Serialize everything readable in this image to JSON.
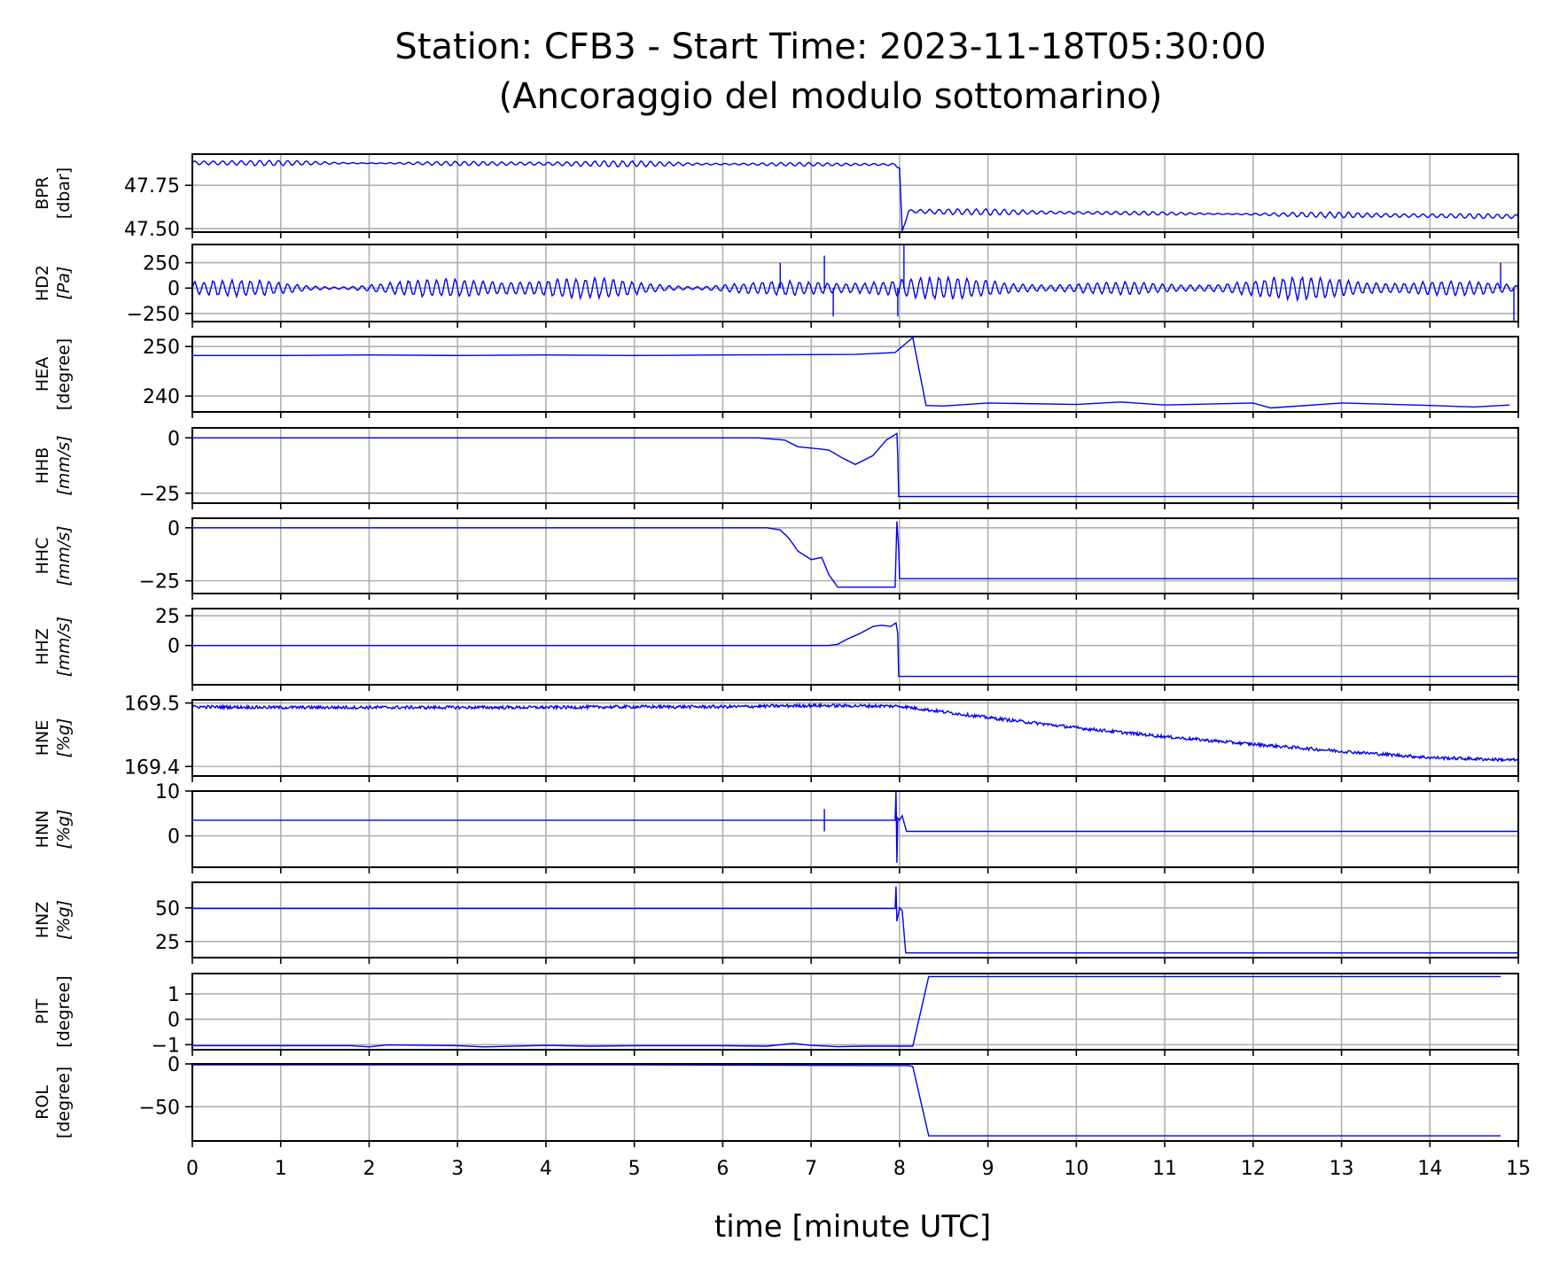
{
  "title_line1": "Station: CFB3 - Start Time: 2023-11-18T05:30:00",
  "title_line2": "(Ancoraggio del modulo sottomarino)",
  "xlabel": "time [minute UTC]",
  "colors": {
    "trace": "#0000ee",
    "grid": "#b0b0b0",
    "axes": "#000000"
  },
  "chart_data": {
    "type": "line",
    "shared_x": {
      "label": "time [minute UTC]",
      "range": [
        0,
        15
      ],
      "ticks": [
        0,
        1,
        2,
        3,
        4,
        5,
        6,
        7,
        8,
        9,
        10,
        11,
        12,
        13,
        14,
        15
      ],
      "tick_labels": [
        "0",
        "1",
        "2",
        "3",
        "4",
        "5",
        "6",
        "7",
        "8",
        "9",
        "10",
        "11",
        "12",
        "13",
        "14",
        "15"
      ]
    },
    "grid": true,
    "panels": [
      {
        "channel": "BPR",
        "unit": "[dbar]",
        "unit_italic": false,
        "ylim": [
          47.48,
          47.93
        ],
        "yticks": [
          47.5,
          47.75
        ],
        "ytick_labels": [
          "47.50",
          "47.75"
        ],
        "series": [
          {
            "x": [
              0,
              7.95,
              8.0,
              8.03,
              8.1,
              15
            ],
            "y": [
              47.88,
              47.87,
              47.85,
              47.48,
              47.6,
              47.57
            ]
          }
        ],
        "oscillation_amplitude": 0.02
      },
      {
        "channel": "HD2",
        "unit": "[Pa]",
        "unit_italic": true,
        "ylim": [
          -330,
          430
        ],
        "yticks": [
          -250,
          0,
          250
        ],
        "ytick_labels": [
          "−250",
          "0",
          "250"
        ],
        "series": [
          {
            "x": [
              0,
              15
            ],
            "y": [
              0,
              0
            ]
          }
        ],
        "oscillation_amplitude": 120,
        "spikes": [
          {
            "x": 6.65,
            "y": 250
          },
          {
            "x": 7.15,
            "y": 320
          },
          {
            "x": 7.25,
            "y": -280
          },
          {
            "x": 7.98,
            "y": -280
          },
          {
            "x": 8.05,
            "y": 430
          },
          {
            "x": 14.8,
            "y": 250
          },
          {
            "x": 14.95,
            "y": -320
          }
        ]
      },
      {
        "channel": "HEA",
        "unit": "[degree]",
        "unit_italic": false,
        "ylim": [
          236.8,
          252.0
        ],
        "yticks": [
          240,
          250
        ],
        "ytick_labels": [
          "240",
          "250"
        ],
        "series": [
          {
            "x": [
              0,
              1,
              2,
              3,
              4,
              5,
              6,
              7.5,
              7.95,
              8.15,
              8.3,
              8.5,
              9,
              10,
              10.5,
              11,
              12,
              12.2,
              13,
              14,
              14.5,
              14.9
            ],
            "y": [
              248.2,
              248.2,
              248.3,
              248.2,
              248.3,
              248.2,
              248.3,
              248.4,
              248.8,
              251.8,
              238.1,
              238.0,
              238.6,
              238.3,
              238.8,
              238.2,
              238.6,
              237.6,
              238.6,
              238.1,
              237.8,
              238.2
            ]
          }
        ]
      },
      {
        "channel": "HHB",
        "unit": "[mm/s]",
        "unit_italic": true,
        "ylim": [
          -29.5,
          4.5
        ],
        "yticks": [
          -25,
          0
        ],
        "ytick_labels": [
          "−25",
          "0"
        ],
        "series": [
          {
            "x": [
              0,
              6.4,
              6.7,
              6.85,
              7.1,
              7.2,
              7.35,
              7.5,
              7.7,
              7.85,
              7.97,
              7.98,
              7.99,
              8.0,
              15
            ],
            "y": [
              0,
              0,
              -1,
              -4,
              -5,
              -5.5,
              -9,
              -12,
              -8,
              -1,
              2,
              -8,
              -26.5,
              -26.5,
              -26.5
            ]
          }
        ]
      },
      {
        "channel": "HHC",
        "unit": "[mm/s]",
        "unit_italic": true,
        "ylim": [
          -31,
          4.5
        ],
        "yticks": [
          -25,
          0
        ],
        "ytick_labels": [
          "−25",
          "0"
        ],
        "series": [
          {
            "x": [
              0,
              6.5,
              6.65,
              6.75,
              6.85,
              7.0,
              7.12,
              7.2,
              7.3,
              7.6,
              7.95,
              7.97,
              7.99,
              8.0,
              15
            ],
            "y": [
              0,
              0,
              -1,
              -5,
              -11,
              -15,
              -14,
              -22,
              -28,
              -28,
              -28,
              3,
              -10,
              -24,
              -24
            ]
          }
        ]
      },
      {
        "channel": "HHZ",
        "unit": "[mm/s]",
        "unit_italic": true,
        "ylim": [
          -33,
          31
        ],
        "yticks": [
          0,
          25
        ],
        "ytick_labels": [
          "0",
          "25"
        ],
        "series": [
          {
            "x": [
              0,
              7.1,
              7.15,
              7.2,
              7.3,
              7.4,
              7.55,
              7.7,
              7.8,
              7.9,
              7.96,
              7.98,
              7.99,
              8.0,
              15
            ],
            "y": [
              0,
              0,
              0,
              0,
              1,
              5,
              10,
              16,
              17,
              16,
              19,
              10,
              -26,
              -26,
              -26
            ]
          }
        ]
      },
      {
        "channel": "HNE",
        "unit": "[%g]",
        "unit_italic": true,
        "ylim": [
          169.385,
          169.505
        ],
        "yticks": [
          169.4,
          169.5
        ],
        "ytick_labels": [
          "169.4",
          "169.5"
        ],
        "series": [
          {
            "x": [
              0,
              1,
              2,
              3,
              4,
              5,
              6,
              7,
              8,
              9,
              10,
              11,
              12,
              13,
              14,
              15
            ],
            "y": [
              169.494,
              169.493,
              169.493,
              169.493,
              169.493,
              169.494,
              169.494,
              169.496,
              169.495,
              169.477,
              169.461,
              169.447,
              169.435,
              169.424,
              169.414,
              169.41
            ]
          }
        ],
        "noise_amplitude": 0.0025
      },
      {
        "channel": "HNN",
        "unit": "[%g]",
        "unit_italic": true,
        "ylim": [
          -7,
          10
        ],
        "yticks": [
          0,
          10
        ],
        "ytick_labels": [
          "0",
          "10"
        ],
        "series": [
          {
            "x": [
              0,
              7.9,
              7.95,
              7.96,
              7.97,
              7.98,
              8.0,
              8.03,
              8.05,
              8.08,
              15
            ],
            "y": [
              3.5,
              3.5,
              3.5,
              10,
              -6,
              4,
              3.5,
              4.5,
              3,
              1,
              1
            ]
          }
        ],
        "spikes": [
          {
            "x": 7.15,
            "y": 6.0
          },
          {
            "x": 7.15,
            "y": 1.0
          }
        ]
      },
      {
        "channel": "HNZ",
        "unit": "[%g]",
        "unit_italic": true,
        "ylim": [
          13,
          69
        ],
        "yticks": [
          25,
          50
        ],
        "ytick_labels": [
          "25",
          "50"
        ],
        "series": [
          {
            "x": [
              0,
              6.4,
              7.9,
              7.95,
              7.96,
              7.97,
              8.0,
              8.03,
              8.07,
              15
            ],
            "y": [
              49.5,
              49.5,
              49.5,
              49.5,
              66,
              40,
              50,
              48,
              16.5,
              16.5
            ]
          }
        ]
      },
      {
        "channel": "PIT",
        "unit": "[degree]",
        "unit_italic": false,
        "ylim": [
          -1.2,
          1.8
        ],
        "yticks": [
          -1,
          0,
          1
        ],
        "ytick_labels": [
          "−1",
          "0",
          "1"
        ],
        "series": [
          {
            "x": [
              0,
              1.8,
              2,
              2.2,
              3,
              3.3,
              4,
              4.5,
              5,
              6,
              6.5,
              6.8,
              7,
              7.3,
              7.6,
              8.15,
              8.33,
              14.8
            ],
            "y": [
              -1.04,
              -1.04,
              -1.09,
              -1.01,
              -1.04,
              -1.09,
              -1.03,
              -1.06,
              -1.04,
              -1.04,
              -1.06,
              -0.95,
              -1.03,
              -1.08,
              -1.06,
              -1.06,
              1.68,
              1.68
            ]
          }
        ]
      },
      {
        "channel": "ROL",
        "unit": "[degree]",
        "unit_italic": false,
        "ylim": [
          -90,
          0
        ],
        "yticks": [
          -50,
          0
        ],
        "ytick_labels": [
          "−50",
          "0"
        ],
        "series": [
          {
            "x": [
              0,
              5,
              8.0,
              8.1,
              8.15,
              8.33,
              10,
              12,
              14,
              14.8
            ],
            "y": [
              -1,
              -1,
              -2,
              -2,
              -3,
              -84,
              -84,
              -84,
              -84,
              -84
            ]
          }
        ]
      }
    ]
  }
}
